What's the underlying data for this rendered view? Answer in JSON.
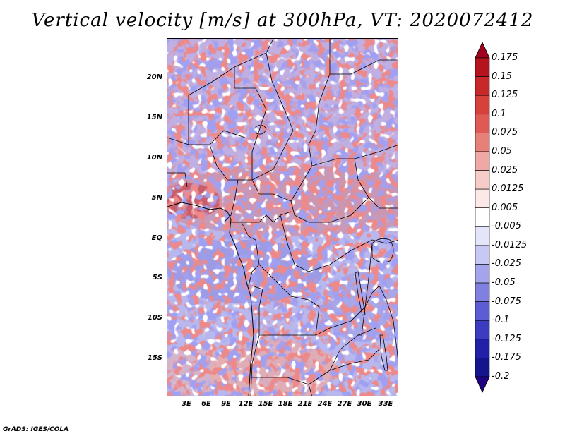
{
  "title": "Vertical velocity [m/s] at 300hPa, VT: 2020072412",
  "credit": "GrADS: IGES/COLA",
  "map": {
    "lat_labels": [
      "20N",
      "15N",
      "10N",
      "5N",
      "EQ",
      "5S",
      "10S",
      "15S"
    ],
    "lat_values": [
      20,
      15,
      10,
      5,
      0,
      -5,
      -10,
      -15
    ],
    "lon_labels": [
      "3E",
      "6E",
      "9E",
      "12E",
      "15E",
      "18E",
      "21E",
      "24E",
      "27E",
      "30E",
      "33E"
    ],
    "lon_values": [
      3,
      6,
      9,
      12,
      15,
      18,
      21,
      24,
      27,
      30,
      33
    ],
    "lat_range": [
      -20,
      24.5
    ],
    "lon_range": [
      0,
      35
    ]
  },
  "colorbar": {
    "labels": [
      "0.175",
      "0.15",
      "0.125",
      "0.1",
      "0.075",
      "0.05",
      "0.025",
      "0.0125",
      "0.005",
      "-0.005",
      "-0.0125",
      "-0.025",
      "-0.05",
      "-0.075",
      "-0.1",
      "-0.125",
      "-0.175",
      "-0.2"
    ],
    "colors": [
      "#a0001e",
      "#b5141e",
      "#c8282a",
      "#d8403c",
      "#e05a55",
      "#e8807a",
      "#f0a8a4",
      "#f6ccc8",
      "#fce8e6",
      "#ffffff",
      "#e4e4fa",
      "#c8c8f4",
      "#a4a4ec",
      "#8080e0",
      "#5c5cd4",
      "#3c3cc0",
      "#2020a8",
      "#14148c",
      "#1e0080"
    ]
  }
}
